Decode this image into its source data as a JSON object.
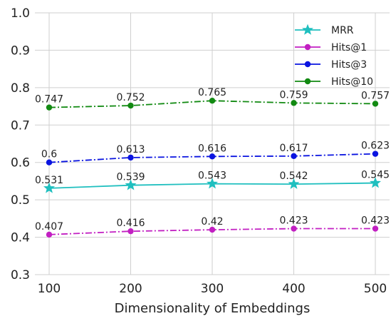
{
  "chart_data": {
    "type": "line",
    "title": "",
    "xlabel": "Dimensionality of Embeddings",
    "ylabel": "",
    "x": [
      100,
      200,
      300,
      400,
      500
    ],
    "xlim": [
      100,
      500
    ],
    "ylim": [
      0.3,
      1.0
    ],
    "yticks": [
      0.3,
      0.4,
      0.5,
      0.6,
      0.7,
      0.8,
      0.9,
      1.0
    ],
    "ytick_labels": [
      "0.3",
      "0.4",
      "0.5",
      "0.6",
      "0.7",
      "0.8",
      "0.9",
      "1.0"
    ],
    "xtick_labels": [
      "100",
      "200",
      "300",
      "400",
      "500"
    ],
    "grid": true,
    "legend_position": "top-right",
    "series": [
      {
        "name": "MRR",
        "color": "#1fbfbf",
        "line_style": "solid",
        "marker": "star",
        "values": [
          0.531,
          0.539,
          0.543,
          0.542,
          0.545
        ],
        "labels": [
          "0.531",
          "0.539",
          "0.543",
          "0.542",
          "0.545"
        ]
      },
      {
        "name": "Hits@1",
        "color": "#c21fc2",
        "line_style": "dashdot",
        "marker": "circle",
        "values": [
          0.407,
          0.416,
          0.42,
          0.423,
          0.423
        ],
        "labels": [
          "0.407",
          "0.416",
          "0.42",
          "0.423",
          "0.423"
        ]
      },
      {
        "name": "Hits@3",
        "color": "#0a14e0",
        "line_style": "dashdot",
        "marker": "circle",
        "values": [
          0.6,
          0.613,
          0.616,
          0.617,
          0.623
        ],
        "labels": [
          "0.6",
          "0.613",
          "0.616",
          "0.617",
          "0.623"
        ]
      },
      {
        "name": "Hits@10",
        "color": "#128a12",
        "line_style": "dashdot",
        "marker": "circle",
        "values": [
          0.747,
          0.752,
          0.765,
          0.759,
          0.757
        ],
        "labels": [
          "0.747",
          "0.752",
          "0.765",
          "0.759",
          "0.757"
        ]
      }
    ]
  }
}
